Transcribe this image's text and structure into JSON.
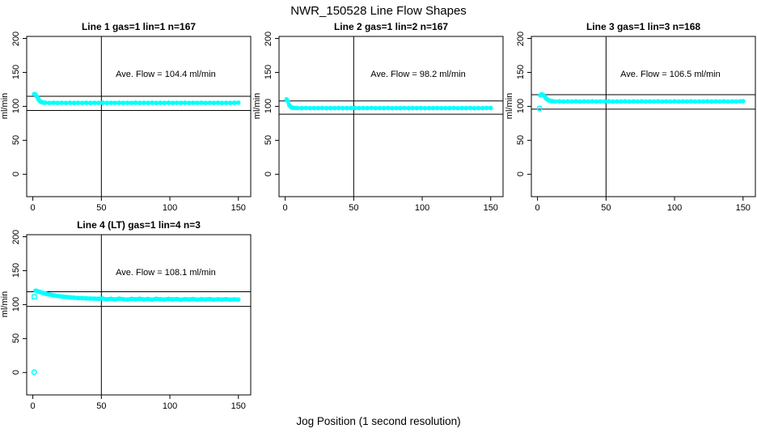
{
  "chart_data": {
    "type": "scatter",
    "title": "NWR_150528  Line Flow Shapes",
    "xlabel": "Jog Position (1 second resolution)",
    "ylabel": "ml/min",
    "x_ticks": [
      0,
      50,
      100,
      150
    ],
    "y_ticks": [
      0,
      50,
      100,
      150,
      200
    ],
    "xlim": [
      -4.5,
      159
    ],
    "ylim": [
      -33,
      203
    ],
    "vline_x": 50,
    "marker_color": "#00FFFF",
    "axis_color": "#000000",
    "grid": false,
    "legend": false,
    "plots": [
      {
        "title": "Line 1 gas=1 lin=1 n=167",
        "ave_flow": 104.4,
        "ave_flow_label": "Ave. Flow =  104.4  ml/min",
        "hlines": [
          114.8,
          94.0
        ],
        "outliers": [],
        "trace": [
          [
            1,
            118.2
          ],
          [
            2,
            117.4
          ],
          [
            3,
            114.3
          ],
          [
            4,
            110.6
          ],
          [
            5,
            108.1
          ],
          [
            6,
            106.6
          ],
          [
            7,
            105.9
          ],
          [
            8,
            105.5
          ],
          [
            9,
            105.3
          ],
          [
            12,
            105.1
          ],
          [
            15,
            105.3
          ],
          [
            18,
            105.0
          ],
          [
            21,
            105.2
          ],
          [
            24,
            105.1
          ],
          [
            27,
            105.3
          ],
          [
            30,
            105.0
          ],
          [
            33,
            105.2
          ],
          [
            36,
            105.1
          ],
          [
            39,
            105.3
          ],
          [
            42,
            105.0
          ],
          [
            45,
            105.2
          ],
          [
            48,
            105.1
          ],
          [
            51,
            105.3
          ],
          [
            54,
            105.0
          ],
          [
            57,
            105.2
          ],
          [
            60,
            105.1
          ],
          [
            63,
            105.3
          ],
          [
            66,
            105.0
          ],
          [
            69,
            105.2
          ],
          [
            72,
            105.1
          ],
          [
            75,
            105.3
          ],
          [
            78,
            105.0
          ],
          [
            81,
            105.2
          ],
          [
            84,
            105.1
          ],
          [
            87,
            105.3
          ],
          [
            90,
            105.0
          ],
          [
            93,
            105.2
          ],
          [
            96,
            105.1
          ],
          [
            99,
            105.3
          ],
          [
            102,
            105.0
          ],
          [
            105,
            105.2
          ],
          [
            108,
            105.1
          ],
          [
            111,
            105.3
          ],
          [
            114,
            105.0
          ],
          [
            117,
            105.2
          ],
          [
            120,
            105.1
          ],
          [
            123,
            105.3
          ],
          [
            126,
            105.0
          ],
          [
            129,
            105.2
          ],
          [
            132,
            105.1
          ],
          [
            135,
            105.3
          ],
          [
            138,
            105.0
          ],
          [
            141,
            105.2
          ],
          [
            144,
            105.1
          ],
          [
            147,
            105.3
          ],
          [
            150,
            105.5
          ]
        ]
      },
      {
        "title": "Line 2 gas=1 lin=2 n=167",
        "ave_flow": 98.2,
        "ave_flow_label": "Ave. Flow =  98.2  ml/min",
        "hlines": [
          108.0,
          88.4
        ],
        "outliers": [],
        "trace": [
          [
            1,
            110.3
          ],
          [
            2,
            107.2
          ],
          [
            3,
            101.8
          ],
          [
            4,
            99.3
          ],
          [
            5,
            98.2
          ],
          [
            6,
            97.8
          ],
          [
            7,
            97.6
          ],
          [
            9,
            97.5
          ],
          [
            12,
            97.4
          ],
          [
            15,
            97.6
          ],
          [
            18,
            97.3
          ],
          [
            21,
            97.5
          ],
          [
            24,
            97.4
          ],
          [
            27,
            97.6
          ],
          [
            30,
            97.3
          ],
          [
            33,
            97.5
          ],
          [
            36,
            97.4
          ],
          [
            39,
            97.6
          ],
          [
            42,
            97.3
          ],
          [
            45,
            97.5
          ],
          [
            48,
            97.4
          ],
          [
            51,
            97.6
          ],
          [
            54,
            97.3
          ],
          [
            57,
            97.5
          ],
          [
            60,
            97.4
          ],
          [
            63,
            97.6
          ],
          [
            66,
            97.3
          ],
          [
            69,
            97.5
          ],
          [
            72,
            97.4
          ],
          [
            75,
            97.6
          ],
          [
            78,
            97.3
          ],
          [
            81,
            97.5
          ],
          [
            84,
            97.4
          ],
          [
            87,
            97.6
          ],
          [
            90,
            97.3
          ],
          [
            93,
            97.5
          ],
          [
            96,
            97.4
          ],
          [
            99,
            97.6
          ],
          [
            102,
            97.3
          ],
          [
            105,
            97.5
          ],
          [
            108,
            97.4
          ],
          [
            111,
            97.6
          ],
          [
            114,
            97.3
          ],
          [
            117,
            97.5
          ],
          [
            120,
            97.4
          ],
          [
            123,
            97.6
          ],
          [
            126,
            97.3
          ],
          [
            129,
            97.5
          ],
          [
            132,
            97.4
          ],
          [
            135,
            97.6
          ],
          [
            138,
            97.3
          ],
          [
            141,
            97.5
          ],
          [
            144,
            97.4
          ],
          [
            147,
            97.6
          ],
          [
            150,
            97.5
          ]
        ]
      },
      {
        "title": "Line 3 gas=1 lin=3 n=168",
        "ave_flow": 106.5,
        "ave_flow_label": "Ave. Flow =  106.5  ml/min",
        "hlines": [
          117.2,
          95.9
        ],
        "outliers": [
          {
            "x": 1.5,
            "y": 97,
            "shape": "circle"
          }
        ],
        "trace": [
          [
            2,
            116.2
          ],
          [
            3,
            117.8
          ],
          [
            4,
            117.1
          ],
          [
            5,
            114.6
          ],
          [
            6,
            112.1
          ],
          [
            7,
            110.3
          ],
          [
            8,
            109.1
          ],
          [
            9,
            108.4
          ],
          [
            10,
            107.9
          ],
          [
            11,
            107.6
          ],
          [
            13,
            107.2
          ],
          [
            16,
            107.4
          ],
          [
            19,
            107.1
          ],
          [
            22,
            107.3
          ],
          [
            25,
            107.2
          ],
          [
            28,
            107.4
          ],
          [
            31,
            107.1
          ],
          [
            34,
            107.3
          ],
          [
            37,
            107.2
          ],
          [
            40,
            107.4
          ],
          [
            43,
            107.1
          ],
          [
            46,
            107.3
          ],
          [
            49,
            107.2
          ],
          [
            52,
            107.4
          ],
          [
            55,
            107.1
          ],
          [
            58,
            107.3
          ],
          [
            61,
            107.2
          ],
          [
            64,
            107.4
          ],
          [
            67,
            107.1
          ],
          [
            70,
            107.3
          ],
          [
            73,
            107.2
          ],
          [
            76,
            107.4
          ],
          [
            79,
            107.1
          ],
          [
            82,
            107.3
          ],
          [
            85,
            107.2
          ],
          [
            88,
            107.4
          ],
          [
            91,
            107.1
          ],
          [
            94,
            107.3
          ],
          [
            97,
            107.2
          ],
          [
            100,
            107.4
          ],
          [
            103,
            107.1
          ],
          [
            106,
            107.3
          ],
          [
            109,
            107.2
          ],
          [
            112,
            107.4
          ],
          [
            115,
            107.1
          ],
          [
            118,
            107.3
          ],
          [
            121,
            107.2
          ],
          [
            124,
            107.4
          ],
          [
            127,
            107.1
          ],
          [
            130,
            107.3
          ],
          [
            133,
            107.2
          ],
          [
            136,
            107.4
          ],
          [
            139,
            107.1
          ],
          [
            142,
            107.3
          ],
          [
            145,
            107.2
          ],
          [
            148,
            107.4
          ],
          [
            150,
            107.6
          ]
        ]
      },
      {
        "title": "Line 4 (LT) gas=1 lin=4 n=3",
        "ave_flow": 108.1,
        "ave_flow_label": "Ave. Flow =  108.1  ml/min",
        "hlines": [
          118.9,
          97.3
        ],
        "outliers": [
          {
            "x": 1,
            "y": 0.5,
            "shape": "circle"
          },
          {
            "x": 1,
            "y": 111.5,
            "shape": "square"
          }
        ],
        "trace": [
          [
            2,
            120.6
          ],
          [
            3,
            120.1
          ],
          [
            4,
            119.4
          ],
          [
            5,
            118.7
          ],
          [
            6,
            118.0
          ],
          [
            7,
            117.4
          ],
          [
            8,
            116.8
          ],
          [
            9,
            116.3
          ],
          [
            10,
            115.8
          ],
          [
            12,
            114.9
          ],
          [
            14,
            114.1
          ],
          [
            16,
            113.4
          ],
          [
            18,
            112.8
          ],
          [
            20,
            112.2
          ],
          [
            22,
            111.7
          ],
          [
            24,
            111.3
          ],
          [
            26,
            110.9
          ],
          [
            28,
            110.5
          ],
          [
            30,
            110.2
          ],
          [
            33,
            109.8
          ],
          [
            36,
            109.5
          ],
          [
            39,
            109.2
          ],
          [
            42,
            109.0
          ],
          [
            45,
            108.8
          ],
          [
            48,
            108.6
          ],
          [
            51,
            108.9
          ],
          [
            54,
            107.8
          ],
          [
            57,
            108.6
          ],
          [
            60,
            107.6
          ],
          [
            63,
            108.8
          ],
          [
            66,
            108.0
          ],
          [
            69,
            107.5
          ],
          [
            72,
            108.5
          ],
          [
            75,
            107.9
          ],
          [
            78,
            108.7
          ],
          [
            81,
            107.6
          ],
          [
            84,
            108.3
          ],
          [
            87,
            107.4
          ],
          [
            90,
            108.6
          ],
          [
            93,
            108.0
          ],
          [
            96,
            107.5
          ],
          [
            99,
            108.4
          ],
          [
            102,
            107.7
          ],
          [
            105,
            108.2
          ],
          [
            108,
            107.3
          ],
          [
            111,
            108.1
          ],
          [
            114,
            107.6
          ],
          [
            117,
            108.3
          ],
          [
            120,
            107.4
          ],
          [
            123,
            108.0
          ],
          [
            126,
            107.6
          ],
          [
            129,
            108.2
          ],
          [
            132,
            107.3
          ],
          [
            135,
            107.9
          ],
          [
            138,
            107.5
          ],
          [
            141,
            108.1
          ],
          [
            144,
            107.3
          ],
          [
            147,
            107.8
          ],
          [
            150,
            107.5
          ]
        ]
      }
    ]
  }
}
